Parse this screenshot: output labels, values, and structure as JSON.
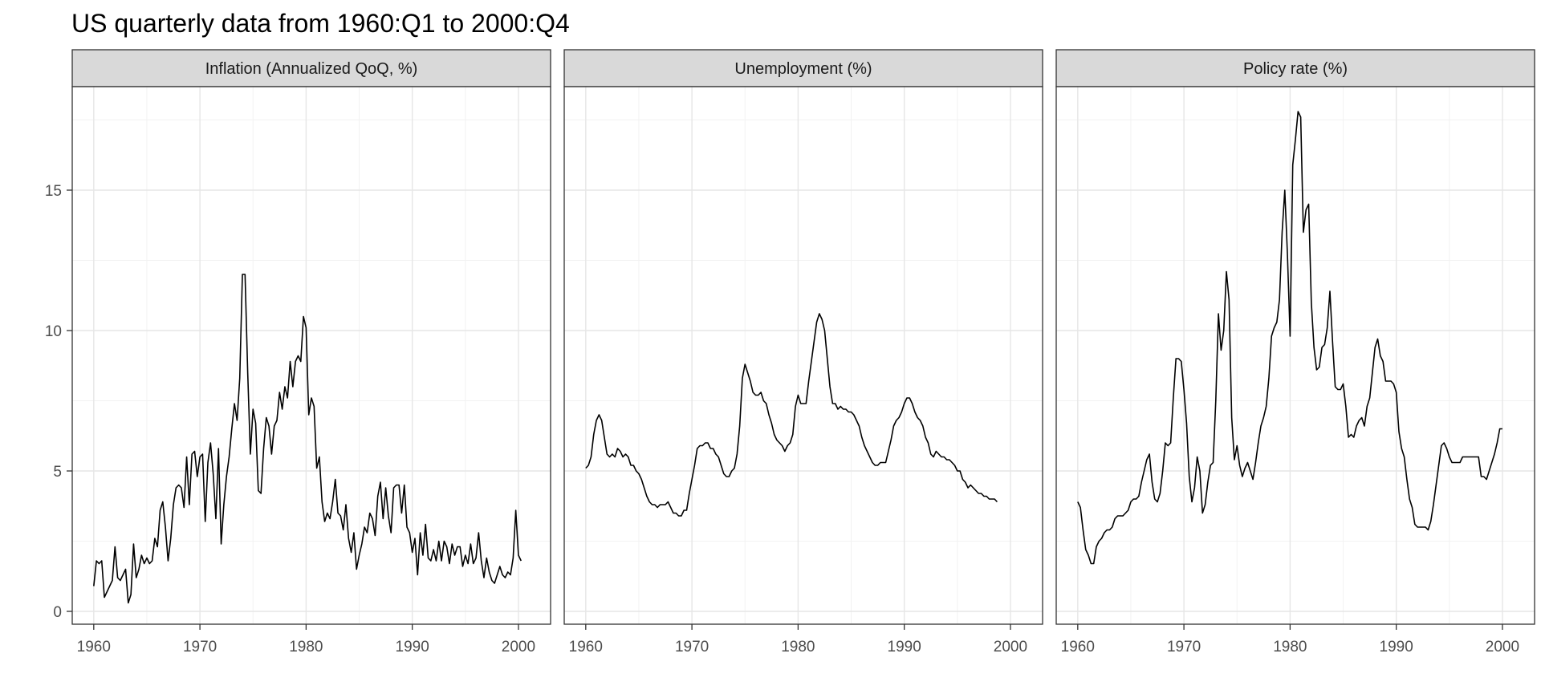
{
  "title": "US quarterly data from 1960:Q1 to 2000:Q4",
  "chart_data": [
    {
      "type": "line",
      "title": "Inflation (Annualized QoQ, %)",
      "xlabel": "",
      "ylabel": "",
      "xlim": [
        1960,
        2001
      ],
      "ylim": [
        0,
        18
      ],
      "x_ticks": [
        1960,
        1970,
        1980,
        1990,
        2000
      ],
      "y_ticks": [
        0,
        5,
        10,
        15
      ],
      "grid": true,
      "x_start": 1960.0,
      "x_step": 0.25,
      "series": [
        {
          "values": [
            0.9,
            1.8,
            1.7,
            1.8,
            0.5,
            0.7,
            0.9,
            1.1,
            2.3,
            1.2,
            1.1,
            1.3,
            1.5,
            0.3,
            0.6,
            2.4,
            1.2,
            1.5,
            2.0,
            1.7,
            1.9,
            1.7,
            1.8,
            2.6,
            2.3,
            3.6,
            3.9,
            3.0,
            1.8,
            2.6,
            3.8,
            4.4,
            4.5,
            4.4,
            3.7,
            5.5,
            3.8,
            5.6,
            5.7,
            4.8,
            5.5,
            5.6,
            3.2,
            5.3,
            6.0,
            4.9,
            3.3,
            5.8,
            2.4,
            3.8,
            4.8,
            5.5,
            6.5,
            7.4,
            6.8,
            8.3,
            12.0,
            12.0,
            8.5,
            5.6,
            7.2,
            6.7,
            4.3,
            4.2,
            5.8,
            6.9,
            6.6,
            5.6,
            6.6,
            6.8,
            7.8,
            7.2,
            8.0,
            7.6,
            8.9,
            8.0,
            8.9,
            9.1,
            8.9,
            10.5,
            10.1,
            7.0,
            7.6,
            7.3,
            5.1,
            5.5,
            3.9,
            3.2,
            3.5,
            3.3,
            3.9,
            4.7,
            3.5,
            3.4,
            2.9,
            3.8,
            2.6,
            2.1,
            2.8,
            1.5,
            2.0,
            2.4,
            3.0,
            2.8,
            3.5,
            3.3,
            2.7,
            4.1,
            4.6,
            3.3,
            4.4,
            3.4,
            2.8,
            4.4,
            4.5,
            4.5,
            3.5,
            4.5,
            3.0,
            2.8,
            2.1,
            2.6,
            1.3,
            2.8,
            2.0,
            3.1,
            1.9,
            1.8,
            2.2,
            1.8,
            2.5,
            1.8,
            2.5,
            2.3,
            1.7,
            2.4,
            2.0,
            2.3,
            2.3,
            1.6,
            2.0,
            1.7,
            2.4,
            1.7,
            1.9,
            2.8,
            1.8,
            1.2,
            1.9,
            1.4,
            1.1,
            1.0,
            1.3,
            1.6,
            1.3,
            1.2,
            1.4,
            1.3,
            1.9,
            3.6,
            2.0,
            1.8
          ]
        }
      ]
    },
    {
      "type": "line",
      "title": "Unemployment (%)",
      "xlabel": "",
      "ylabel": "",
      "xlim": [
        1960,
        2001
      ],
      "ylim": [
        0,
        18
      ],
      "x_ticks": [
        1960,
        1970,
        1980,
        1990,
        2000
      ],
      "y_ticks": [
        0,
        5,
        10,
        15
      ],
      "grid": true,
      "x_start": 1960.0,
      "x_step": 0.25,
      "series": [
        {
          "values": [
            5.1,
            5.2,
            5.5,
            6.3,
            6.8,
            7.0,
            6.8,
            6.2,
            5.6,
            5.5,
            5.6,
            5.5,
            5.8,
            5.7,
            5.5,
            5.6,
            5.5,
            5.2,
            5.2,
            5.0,
            4.9,
            4.7,
            4.4,
            4.1,
            3.9,
            3.8,
            3.8,
            3.7,
            3.8,
            3.8,
            3.8,
            3.9,
            3.7,
            3.5,
            3.5,
            3.4,
            3.4,
            3.6,
            3.6,
            4.2,
            4.7,
            5.2,
            5.8,
            5.9,
            5.9,
            6.0,
            6.0,
            5.8,
            5.8,
            5.6,
            5.5,
            5.2,
            4.9,
            4.8,
            4.8,
            5.0,
            5.1,
            5.6,
            6.6,
            8.3,
            8.8,
            8.5,
            8.2,
            7.8,
            7.7,
            7.7,
            7.8,
            7.5,
            7.4,
            7.0,
            6.7,
            6.3,
            6.1,
            6.0,
            5.9,
            5.7,
            5.9,
            6.0,
            6.3,
            7.3,
            7.7,
            7.4,
            7.4,
            7.4,
            8.2,
            8.9,
            9.6,
            10.3,
            10.6,
            10.4,
            10.0,
            9.0,
            8.0,
            7.4,
            7.4,
            7.2,
            7.3,
            7.2,
            7.2,
            7.1,
            7.1,
            7.0,
            6.8,
            6.6,
            6.2,
            5.9,
            5.7,
            5.5,
            5.3,
            5.2,
            5.2,
            5.3,
            5.3,
            5.3,
            5.7,
            6.1,
            6.6,
            6.8,
            6.9,
            7.1,
            7.4,
            7.6,
            7.6,
            7.4,
            7.1,
            6.9,
            6.8,
            6.6,
            6.2,
            6.0,
            5.6,
            5.5,
            5.7,
            5.6,
            5.5,
            5.5,
            5.4,
            5.4,
            5.3,
            5.2,
            5.0,
            5.0,
            4.7,
            4.6,
            4.4,
            4.5,
            4.4,
            4.3,
            4.2,
            4.2,
            4.1,
            4.1,
            4.0,
            4.0,
            4.0,
            3.9
          ]
        }
      ]
    },
    {
      "type": "line",
      "title": "Policy rate (%)",
      "xlabel": "",
      "ylabel": "",
      "xlim": [
        1960,
        2001
      ],
      "ylim": [
        0,
        18
      ],
      "x_ticks": [
        1960,
        1970,
        1980,
        1990,
        2000
      ],
      "y_ticks": [
        0,
        5,
        10,
        15
      ],
      "grid": true,
      "x_start": 1960.0,
      "x_step": 0.25,
      "series": [
        {
          "values": [
            3.9,
            3.7,
            2.9,
            2.2,
            2.0,
            1.7,
            1.7,
            2.3,
            2.5,
            2.6,
            2.8,
            2.9,
            2.9,
            3.0,
            3.3,
            3.4,
            3.4,
            3.4,
            3.5,
            3.6,
            3.9,
            4.0,
            4.0,
            4.1,
            4.6,
            5.0,
            5.4,
            5.6,
            4.6,
            4.0,
            3.9,
            4.2,
            5.0,
            6.0,
            5.9,
            6.0,
            7.6,
            9.0,
            9.0,
            8.9,
            7.9,
            6.7,
            4.8,
            3.9,
            4.4,
            5.5,
            5.0,
            3.5,
            3.8,
            4.6,
            5.2,
            5.3,
            7.5,
            10.6,
            9.3,
            10.0,
            12.1,
            11.1,
            6.9,
            5.4,
            5.9,
            5.2,
            4.8,
            5.1,
            5.3,
            5.0,
            4.7,
            5.3,
            6.0,
            6.6,
            6.9,
            7.3,
            8.3,
            9.8,
            10.1,
            10.3,
            11.1,
            13.5,
            15.0,
            12.7,
            9.8,
            15.9,
            16.8,
            17.8,
            17.6,
            13.5,
            14.3,
            14.5,
            11.0,
            9.4,
            8.6,
            8.7,
            9.4,
            9.5,
            10.1,
            11.4,
            9.6,
            8.0,
            7.9,
            7.9,
            8.1,
            7.3,
            6.2,
            6.3,
            6.2,
            6.6,
            6.8,
            6.9,
            6.6,
            7.3,
            7.6,
            8.5,
            9.4,
            9.7,
            9.1,
            8.9,
            8.2,
            8.2,
            8.2,
            8.1,
            7.8,
            6.4,
            5.8,
            5.5,
            4.7,
            4.0,
            3.7,
            3.1,
            3.0,
            3.0,
            3.0,
            3.0,
            2.9,
            3.2,
            3.8,
            4.5,
            5.2,
            5.9,
            6.0,
            5.8,
            5.5,
            5.3,
            5.3,
            5.3,
            5.3,
            5.5,
            5.5,
            5.5,
            5.5,
            5.5,
            5.5,
            5.5,
            4.8,
            4.8,
            4.7,
            5.0,
            5.3,
            5.6,
            6.0,
            6.5,
            6.5
          ]
        }
      ]
    }
  ]
}
